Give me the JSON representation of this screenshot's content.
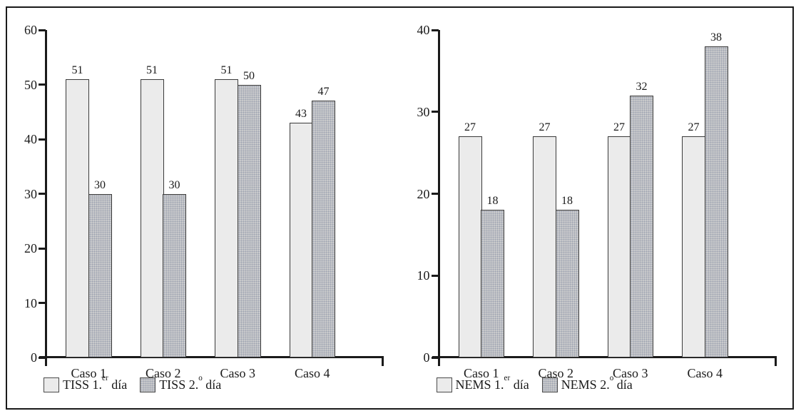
{
  "figure": {
    "background": "#ffffff",
    "frame_border_color": "#1a1a1a"
  },
  "colors": {
    "series1_fill": "#ebebeb",
    "series2_fill": "#c8c9cb",
    "bar_border": "#3a3a3a",
    "axis": "#1a1a1a",
    "text": "#1a1a1a"
  },
  "chart_data": [
    {
      "type": "bar",
      "title": "",
      "xlabel": "",
      "ylabel": "",
      "categories": [
        "Caso 1",
        "Caso 2",
        "Caso 3",
        "Caso 4"
      ],
      "ylim": [
        0,
        60
      ],
      "ytick_step": 10,
      "grid": false,
      "legend_position": "bottom-left",
      "series": [
        {
          "name": "TISS 1.er día",
          "label_prefix": "TISS 1.",
          "label_sup": "er",
          "label_suffix": " día",
          "values": [
            51,
            51,
            51,
            43
          ],
          "textured": false
        },
        {
          "name": "TISS 2.º día",
          "label_prefix": "TISS 2.",
          "label_sup": "o",
          "label_suffix": " día",
          "values": [
            30,
            30,
            50,
            47
          ],
          "textured": true
        }
      ]
    },
    {
      "type": "bar",
      "title": "",
      "xlabel": "",
      "ylabel": "",
      "categories": [
        "Caso 1",
        "Caso 2",
        "Caso 3",
        "Caso 4"
      ],
      "ylim": [
        0,
        40
      ],
      "ytick_step": 10,
      "grid": false,
      "legend_position": "bottom-left",
      "series": [
        {
          "name": "NEMS 1.er día",
          "label_prefix": "NEMS 1.",
          "label_sup": "er",
          "label_suffix": " día",
          "values": [
            27,
            27,
            27,
            27
          ],
          "textured": false
        },
        {
          "name": "NEMS 2.º día",
          "label_prefix": "NEMS 2.",
          "label_sup": "o",
          "label_suffix": " día",
          "values": [
            18,
            18,
            32,
            38
          ],
          "textured": true
        }
      ]
    }
  ]
}
